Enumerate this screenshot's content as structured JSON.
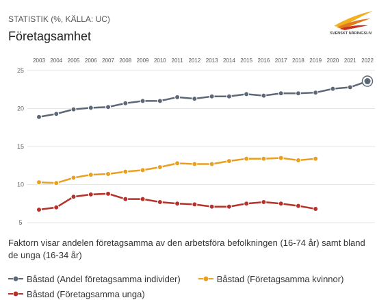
{
  "chart_data": {
    "type": "line",
    "source": "STATISTIK (%, KÄLLA: UC)",
    "title": "Företagsamhet",
    "logo": "SVENSKT NÄRINGSLIV",
    "description": "Faktorn visar andelen företagsamma av den arbetsföra befolkningen (16-74 år) samt bland de unga (16-34 år)",
    "categories": [
      "2003",
      "2004",
      "2005",
      "2006",
      "2007",
      "2008",
      "2009",
      "2010",
      "2011",
      "2012",
      "2013",
      "2014",
      "2015",
      "2016",
      "2017",
      "2018",
      "2019",
      "2020",
      "2021",
      "2022"
    ],
    "series": [
      {
        "name": "Båstad (Andel företagsamma individer)",
        "color": "#5d6877",
        "values": [
          18.9,
          19.3,
          19.9,
          20.1,
          20.2,
          20.7,
          21.0,
          21.0,
          21.5,
          21.3,
          21.6,
          21.6,
          21.9,
          21.7,
          22.0,
          22.0,
          22.1,
          22.6,
          22.8,
          23.6
        ]
      },
      {
        "name": "Båstad (Företagsamma kvinnor)",
        "color": "#e9a021",
        "values": [
          10.3,
          10.2,
          10.9,
          11.3,
          11.4,
          11.7,
          11.9,
          12.3,
          12.8,
          12.7,
          12.7,
          13.1,
          13.4,
          13.4,
          13.5,
          13.2,
          13.4,
          null,
          null,
          null
        ]
      },
      {
        "name": "Båstad (Företagsamma unga)",
        "color": "#b5322b",
        "values": [
          6.7,
          7.0,
          8.4,
          8.7,
          8.8,
          8.1,
          8.1,
          7.7,
          7.5,
          7.4,
          7.1,
          7.1,
          7.5,
          7.7,
          7.5,
          7.2,
          6.8,
          null,
          null,
          null
        ]
      }
    ],
    "ylim": [
      5,
      25
    ],
    "yticks": [
      5,
      10,
      15,
      20,
      25
    ],
    "grid": true
  }
}
